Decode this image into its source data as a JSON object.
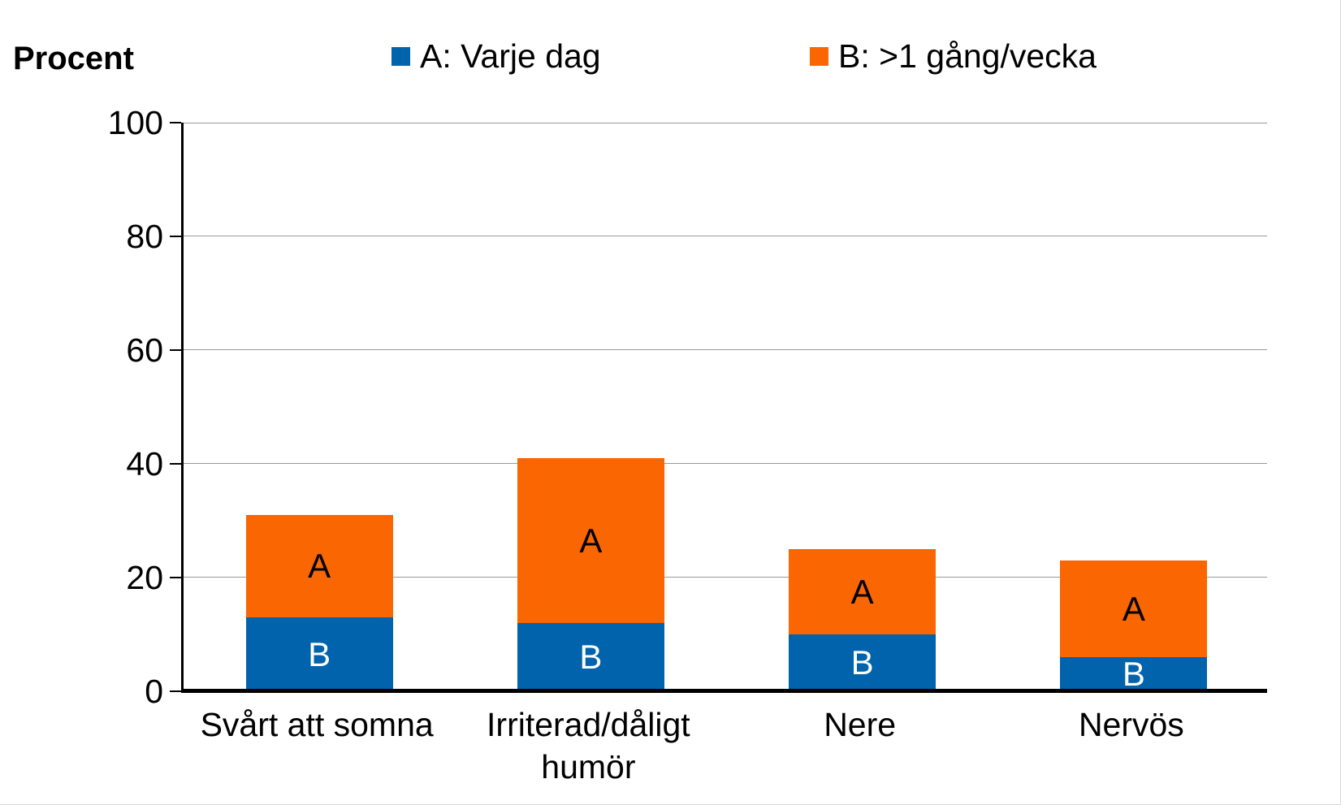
{
  "page": {
    "y_axis_title": "Procent"
  },
  "legend": [
    {
      "label": "A: Varje dag",
      "color": "#0063AC"
    },
    {
      "label": "B: >1 gång/vecka",
      "color": "#F96602"
    }
  ],
  "chart_data": {
    "type": "bar",
    "stacked": true,
    "title": "",
    "ylabel": "Procent",
    "xlabel": "",
    "ylim": [
      0,
      100
    ],
    "yticks": [
      0,
      20,
      40,
      60,
      80,
      100
    ],
    "grid": true,
    "legend_position": "top",
    "categories": [
      "Svårt att somna",
      "Irriterad/dåligt humör",
      "Nere",
      "Nervös"
    ],
    "series": [
      {
        "name": "A: Varje dag",
        "color": "#0063AC",
        "position": "bottom",
        "inner_letter": "B",
        "inner_letter_color": "#FFFFFF",
        "values": [
          13,
          12,
          10,
          6
        ]
      },
      {
        "name": "B: >1 gång/vecka",
        "color": "#F96602",
        "position": "top",
        "inner_letter": "A",
        "inner_letter_color": "#000000",
        "values": [
          18,
          29,
          15,
          17
        ]
      }
    ],
    "stack_totals": [
      31,
      41,
      25,
      23
    ]
  }
}
